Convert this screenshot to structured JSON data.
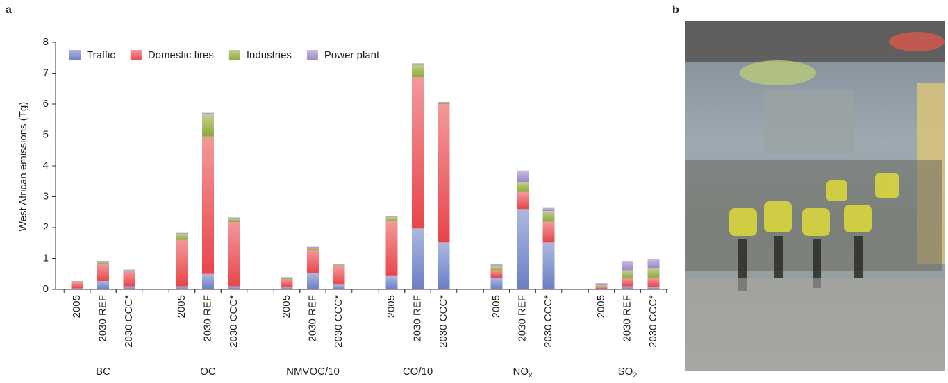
{
  "panel_labels": [
    "a",
    "b"
  ],
  "chart_data": {
    "type": "stacked-bar",
    "y_label": "West African emissions (Tg)",
    "categories": [
      "2005",
      "2030 REF",
      "2030 CCC*",
      "2005",
      "2030 REF",
      "2030 CCC*",
      "2005",
      "2030 REF",
      "2030 CCC*",
      "2005",
      "2030 REF",
      "2030 CCC*",
      "2005",
      "2030 REF",
      "2030 CCC*",
      "2005",
      "2030 REF",
      "2030 CCC*"
    ],
    "groups": [
      {
        "name": "BC"
      },
      {
        "name": "OC"
      },
      {
        "name": "NMVOC/10"
      },
      {
        "name": "CO/10"
      },
      {
        "name": "NO",
        "sub": "x"
      },
      {
        "name": "SO",
        "sub": "2"
      }
    ],
    "series": [
      {
        "name": "Traffic",
        "color": "#6a7ec6",
        "values": [
          0.03,
          0.27,
          0.1,
          0.1,
          0.5,
          0.1,
          0.08,
          0.52,
          0.15,
          0.43,
          1.97,
          1.52,
          0.38,
          2.6,
          1.52,
          0.02,
          0.1,
          0.07
        ]
      },
      {
        "name": "Domestic fires",
        "color": "#e8454a",
        "values": [
          0.2,
          0.55,
          0.48,
          1.5,
          4.45,
          2.08,
          0.25,
          0.75,
          0.6,
          1.77,
          4.9,
          4.48,
          0.24,
          0.55,
          0.67,
          0.05,
          0.25,
          0.3
        ]
      },
      {
        "name": "Industries",
        "color": "#8fa83b",
        "values": [
          0.03,
          0.07,
          0.04,
          0.2,
          0.72,
          0.12,
          0.06,
          0.08,
          0.05,
          0.14,
          0.42,
          0.05,
          0.12,
          0.33,
          0.35,
          0.06,
          0.27,
          0.32
        ]
      },
      {
        "name": "Power plant",
        "color": "#9d86c6",
        "values": [
          0.01,
          0.03,
          0.02,
          0.03,
          0.05,
          0.03,
          0.01,
          0.03,
          0.02,
          0.02,
          0.03,
          0.02,
          0.08,
          0.37,
          0.1,
          0.07,
          0.3,
          0.3
        ]
      }
    ],
    "ylim": [
      0,
      8
    ],
    "yticks": [
      0,
      1,
      2,
      3,
      4,
      5,
      6,
      7,
      8
    ]
  }
}
